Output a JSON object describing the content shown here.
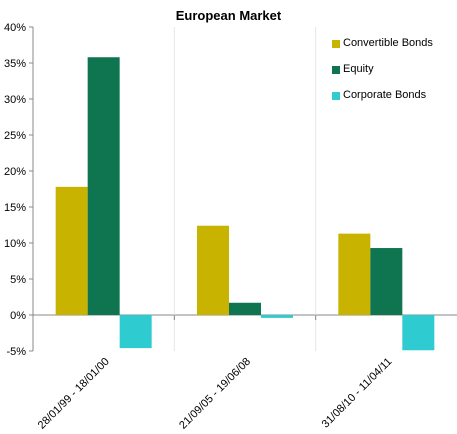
{
  "chart_data": {
    "type": "bar",
    "title": "European Market",
    "xlabel": "",
    "ylabel": "",
    "ylim": [
      -5,
      40
    ],
    "ytick_step": 5,
    "ytick_labels": [
      "-5%",
      "0%",
      "5%",
      "10%",
      "15%",
      "20%",
      "25%",
      "30%",
      "35%",
      "40%"
    ],
    "categories": [
      "28/01/99 - 18/01/00",
      "21/09/05 - 19/06/08",
      "31/08/10 - 11/04/11"
    ],
    "series": [
      {
        "name": "Convertible Bonds",
        "color": "#c8b400",
        "values": [
          17.8,
          12.4,
          11.3
        ]
      },
      {
        "name": "Equity",
        "color": "#0e7550",
        "values": [
          35.8,
          1.7,
          9.3
        ]
      },
      {
        "name": "Corporate Bonds",
        "color": "#2ecbd0",
        "values": [
          -4.6,
          -0.4,
          -4.9
        ]
      }
    ],
    "grid": false,
    "category_separators": true,
    "legend_position": "top-right"
  }
}
